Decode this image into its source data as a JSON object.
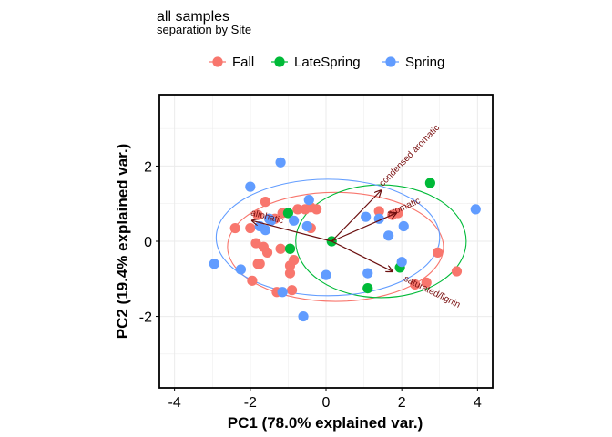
{
  "chart_data": {
    "type": "scatter",
    "title": "all samples",
    "subtitle": "separation by Site",
    "xlabel": "PC1 (78.0% explained var.)",
    "ylabel": "PC2 (19.4% explained var.)",
    "xlim": [
      -4.4,
      4.4
    ],
    "ylim": [
      -3.9,
      3.9
    ],
    "xticks": [
      -4,
      -2,
      0,
      2,
      4
    ],
    "yticks": [
      -2,
      0,
      2
    ],
    "grid": true,
    "legend": {
      "position": "top"
    },
    "series": [
      {
        "name": "Fall",
        "color": "#F8766D",
        "points": [
          [
            -1.6,
            1.05
          ],
          [
            -1.15,
            0.75
          ],
          [
            -0.75,
            0.85
          ],
          [
            -0.55,
            0.85
          ],
          [
            -0.4,
            0.9
          ],
          [
            -0.25,
            0.85
          ],
          [
            -2.4,
            0.35
          ],
          [
            -2.0,
            0.35
          ],
          [
            -1.8,
            0.7
          ],
          [
            -1.5,
            0.6
          ],
          [
            -1.35,
            0.6
          ],
          [
            -1.85,
            -0.05
          ],
          [
            -1.65,
            -0.15
          ],
          [
            -1.55,
            -0.3
          ],
          [
            -1.2,
            -0.2
          ],
          [
            -0.95,
            -0.2
          ],
          [
            -1.75,
            -0.6
          ],
          [
            -1.8,
            -0.6
          ],
          [
            -0.95,
            -0.65
          ],
          [
            -0.95,
            -0.85
          ],
          [
            -1.95,
            -1.05
          ],
          [
            -1.3,
            -1.35
          ],
          [
            -0.9,
            -1.3
          ],
          [
            -0.85,
            -0.5
          ],
          [
            -0.4,
            0.35
          ],
          [
            1.4,
            0.8
          ],
          [
            1.75,
            0.7
          ],
          [
            1.9,
            0.75
          ],
          [
            2.95,
            -0.3
          ],
          [
            2.35,
            -1.15
          ],
          [
            2.65,
            -1.1
          ],
          [
            3.45,
            -0.8
          ]
        ]
      },
      {
        "name": "LateSpring",
        "color": "#00BA38",
        "points": [
          [
            -1.0,
            0.75
          ],
          [
            -0.95,
            -0.2
          ],
          [
            0.15,
            0.0
          ],
          [
            2.75,
            1.55
          ],
          [
            1.1,
            -1.25
          ],
          [
            1.95,
            -0.7
          ]
        ]
      },
      {
        "name": "Spring",
        "color": "#619CFF",
        "points": [
          [
            -1.2,
            2.1
          ],
          [
            -2.0,
            1.45
          ],
          [
            -0.45,
            1.1
          ],
          [
            -1.5,
            0.6
          ],
          [
            -1.75,
            0.4
          ],
          [
            -1.6,
            0.3
          ],
          [
            -1.45,
            0.55
          ],
          [
            -0.85,
            0.55
          ],
          [
            -0.5,
            0.4
          ],
          [
            1.05,
            0.65
          ],
          [
            1.4,
            0.6
          ],
          [
            1.65,
            0.15
          ],
          [
            2.05,
            0.4
          ],
          [
            3.95,
            0.85
          ],
          [
            -2.95,
            -0.6
          ],
          [
            -2.25,
            -0.75
          ],
          [
            -1.15,
            -1.35
          ],
          [
            0.0,
            -0.9
          ],
          [
            1.1,
            -0.85
          ],
          [
            2.0,
            -0.55
          ],
          [
            -0.6,
            -2.0
          ]
        ]
      }
    ],
    "ellipses": [
      {
        "series": "Fall",
        "center": [
          0.25,
          -0.15
        ],
        "semi_axes": [
          2.85,
          1.45
        ],
        "angle_deg": 0
      },
      {
        "series": "LateSpring",
        "center": [
          1.45,
          0.0
        ],
        "semi_axes": [
          2.25,
          1.5
        ],
        "angle_deg": 0
      },
      {
        "series": "Spring",
        "center": [
          0.05,
          0.1
        ],
        "semi_axes": [
          2.95,
          1.55
        ],
        "angle_deg": 0
      }
    ],
    "loadings": {
      "origin": [
        0.15,
        0.0
      ],
      "color": "#6B0F0F",
      "arrows": [
        {
          "label": "condensed aromatic",
          "end": [
            1.45,
            1.35
          ]
        },
        {
          "label": "aromatic",
          "end": [
            1.85,
            0.75
          ]
        },
        {
          "label": "aliphatic",
          "end": [
            -1.95,
            0.55
          ]
        },
        {
          "label": "saturated/lignin",
          "end": [
            1.75,
            -0.8
          ]
        }
      ]
    }
  }
}
